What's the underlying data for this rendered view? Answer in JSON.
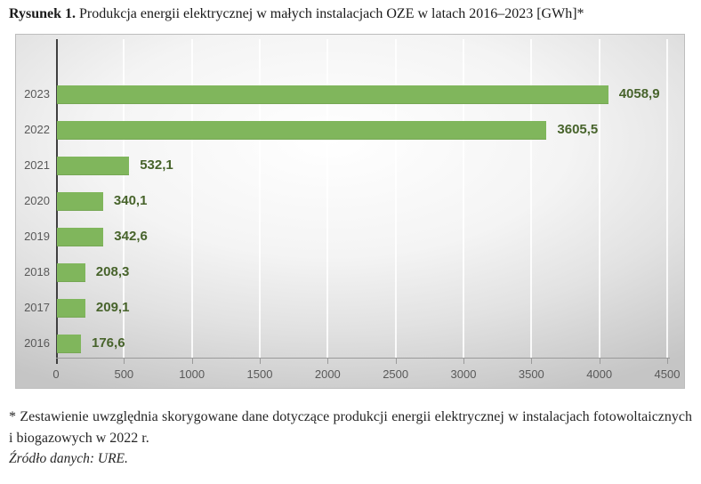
{
  "title": {
    "prefix": "Rysunek 1.",
    "text": "Produkcja energii elektrycznej w małych instalacjach OZE w latach 2016–2023 [GWh]*"
  },
  "chart_data": {
    "type": "bar",
    "orientation": "horizontal",
    "categories": [
      "2023",
      "2022",
      "2021",
      "2020",
      "2019",
      "2018",
      "2017",
      "2016"
    ],
    "values": [
      4058.9,
      3605.5,
      532.1,
      340.1,
      342.6,
      208.3,
      209.1,
      176.6
    ],
    "value_labels": [
      "4058,9",
      "3605,5",
      "532,1",
      "340,1",
      "342,6",
      "208,3",
      "209,1",
      "176,6"
    ],
    "x_ticks": [
      0,
      500,
      1000,
      1500,
      2000,
      2500,
      3000,
      3500,
      4000,
      4500
    ],
    "xlim": [
      0,
      4500
    ],
    "xlabel": "",
    "ylabel": "",
    "grid": true,
    "legend": false,
    "bar_color": "#80b65c",
    "value_label_color": "#47632b",
    "axis_label_color": "#595959"
  },
  "footnote": "* Zestawienie uwzględnia skorygowane dane dotyczące produkcji energii elektrycznej w instalacjach fotowoltaicznych i biogazowych w 2022 r.",
  "source": "Źródło danych: URE."
}
